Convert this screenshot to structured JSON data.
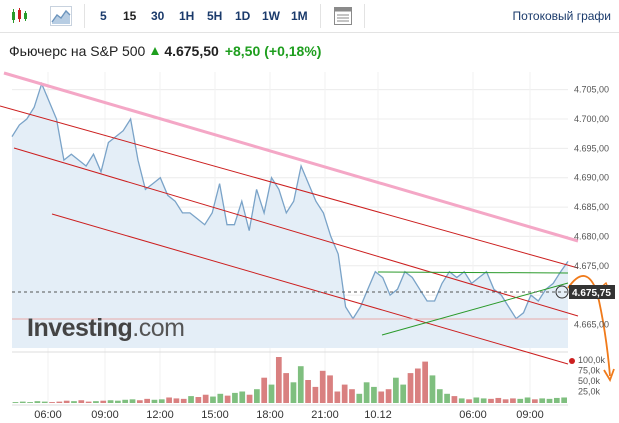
{
  "toolbar": {
    "timeframes": [
      "5",
      "15",
      "30",
      "1H",
      "5H",
      "1D",
      "1W",
      "1M"
    ],
    "active_timeframe": "15",
    "stream_label": "Потоковый графи"
  },
  "quote": {
    "name": "Фьючерс на S&P 500",
    "price": "4.675,50",
    "change": "+8,50",
    "change_pct": "(+0,18%)",
    "up_color": "#1e9e1e"
  },
  "logo": {
    "brand": "Investing",
    "suffix": ".com"
  },
  "chart_data": {
    "type": "area",
    "price_axis": {
      "range": [
        4661,
        4708
      ],
      "ticks": [
        "4.705,00",
        "4.700,00",
        "4.695,00",
        "4.690,00",
        "4.685,00",
        "4.680,00",
        "4.675,00",
        "4.670,00",
        "4.665,00"
      ],
      "current_label": "4.675,75"
    },
    "volume_axis": {
      "ticks": [
        "100,0k",
        "75,0k",
        "50,0k",
        "25,0k"
      ]
    },
    "time_axis": {
      "ticks": [
        "06:00",
        "09:00",
        "12:00",
        "15:00",
        "18:00",
        "21:00",
        "10.12",
        "06:00",
        "09:00"
      ]
    },
    "colors": {
      "area_line": "#7aa3c8",
      "area_fill": "#e4eef7",
      "channel": "#cc1f1f",
      "pink_trend": "#f4a7c6",
      "triangle": "#2a9a2a",
      "forecast": "#f07a1a",
      "vol_up": "#7fbf7f",
      "vol_down": "#d98080"
    },
    "price_series": [
      4697,
      4699,
      4700,
      4702,
      4706,
      4703,
      4700,
      4693,
      4694,
      4693,
      4692,
      4694,
      4691,
      4696,
      4697,
      4698,
      4700,
      4693,
      4688,
      4689,
      4690,
      4687,
      4686,
      4684,
      4684,
      4683,
      4682,
      4684,
      4689,
      4682,
      4682,
      4686,
      4681,
      4688,
      4684,
      4690,
      4688,
      4684,
      4686,
      4692,
      4689,
      4686,
      4684,
      4680,
      4677,
      4668,
      4666,
      4668,
      4671,
      4674,
      4673,
      4670,
      4671,
      4674,
      4673,
      4671,
      4669,
      4669,
      4672,
      4674,
      4673,
      4674,
      4672,
      4673,
      4674,
      4671,
      4670,
      4668,
      4666,
      4667,
      4670,
      4669,
      4671,
      4672,
      4674,
      4675.75
    ],
    "volume_series": [
      2,
      3,
      2,
      4,
      3,
      2,
      3,
      5,
      4,
      6,
      3,
      4,
      5,
      6,
      5,
      7,
      8,
      6,
      9,
      7,
      8,
      12,
      10,
      9,
      15,
      13,
      18,
      14,
      20,
      16,
      22,
      25,
      18,
      30,
      55,
      40,
      100,
      65,
      45,
      80,
      50,
      35,
      70,
      60,
      25,
      40,
      30,
      20,
      45,
      35,
      25,
      30,
      55,
      40,
      65,
      75,
      90,
      60,
      30,
      20,
      15,
      10,
      8,
      12,
      10,
      9,
      11,
      8,
      10,
      9,
      12,
      8,
      10,
      9,
      11,
      12
    ]
  }
}
